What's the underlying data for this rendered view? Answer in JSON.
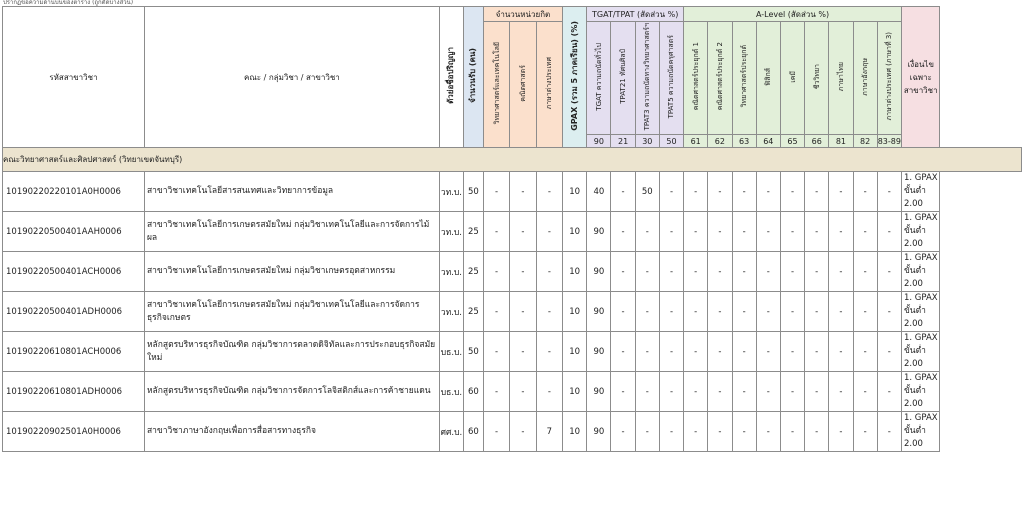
{
  "top_note": "ปรากฏข้อความด้านบนของตาราง (ถูกตัดบางส่วน)",
  "headers": {
    "code": "รหัสสาขาวิชา",
    "faculty": "คณะ / กลุ่มวิชา / สาขาวิชา",
    "degree": "ตัวย่อชื่อปริญญา",
    "seats": "จำนวนรับ (คน)",
    "unit_group": "จำนวนหน่วยกิต",
    "unit_cols": [
      "วิทยาศาสตร์และเทคโนโลยี",
      "คณิตศาสตร์",
      "ภาษาต่างประเทศ"
    ],
    "gpax": "GPAX (รวม 5 ภาคเรียน) (%)",
    "tgat_group": "TGAT/TPAT (สัดส่วน %)",
    "tgat_cols": [
      "TGAT ความถนัดทั่วไป",
      "TPAT21 ทัศนศิลป์",
      "TPAT3 ความถนัดทางวิทยาศาสตร์ฯ",
      "TPAT5 ความถนัดครุศาสตร์"
    ],
    "tgat_codes": [
      "90",
      "21",
      "30",
      "50"
    ],
    "alevel_group": "A-Level (สัดส่วน %)",
    "alevel_cols": [
      "คณิตศาสตร์ประยุกต์ 1",
      "คณิตศาสตร์ประยุกต์ 2",
      "วิทยาศาสตร์ประยุกต์",
      "ฟิสิกส์",
      "เคมี",
      "ชีววิทยา",
      "ภาษาไทย",
      "ภาษาอังกฤษ",
      "ภาษาต่างประเทศ (ภาษาที่ 3)"
    ],
    "alevel_codes": [
      "61",
      "62",
      "63",
      "64",
      "65",
      "66",
      "81",
      "82",
      "83-89"
    ],
    "note": "เงื่อนไขเฉพาะ สาขาวิชา"
  },
  "section_title": "คณะวิทยาศาสตร์และศิลปศาสตร์ (วิทยาเขตจันทบุรี)",
  "rows": [
    {
      "code": "10190220220101A0H0006",
      "name": "สาขาวิชาเทคโนโลยีสารสนเทศและวิทยาการข้อมูล",
      "degree": "วท.บ.",
      "seats": "50",
      "units": [
        "-",
        "-",
        "-"
      ],
      "gpax": "10",
      "tgat": [
        "40",
        "-",
        "50",
        "-"
      ],
      "alevel": [
        "-",
        "-",
        "-",
        "-",
        "-",
        "-",
        "-",
        "-",
        "-"
      ],
      "note": "1. GPAX ขั้นต่ำ 2.00"
    },
    {
      "code": "10190220500401AAH0006",
      "name": "สาขาวิชาเทคโนโลยีการเกษตรสมัยใหม่ กลุ่มวิชาเทคโนโลยีและการจัดการไม้ผล",
      "degree": "วท.บ.",
      "seats": "25",
      "units": [
        "-",
        "-",
        "-"
      ],
      "gpax": "10",
      "tgat": [
        "90",
        "-",
        "-",
        "-"
      ],
      "alevel": [
        "-",
        "-",
        "-",
        "-",
        "-",
        "-",
        "-",
        "-",
        "-"
      ],
      "note": "1. GPAX ขั้นต่ำ 2.00"
    },
    {
      "code": "10190220500401ACH0006",
      "name": "สาขาวิชาเทคโนโลยีการเกษตรสมัยใหม่ กลุ่มวิชาเกษตรอุตสาหกรรม",
      "degree": "วท.บ.",
      "seats": "25",
      "units": [
        "-",
        "-",
        "-"
      ],
      "gpax": "10",
      "tgat": [
        "90",
        "-",
        "-",
        "-"
      ],
      "alevel": [
        "-",
        "-",
        "-",
        "-",
        "-",
        "-",
        "-",
        "-",
        "-"
      ],
      "note": "1. GPAX ขั้นต่ำ 2.00"
    },
    {
      "code": "10190220500401ADH0006",
      "name": "สาขาวิชาเทคโนโลยีการเกษตรสมัยใหม่ กลุ่มวิชาเทคโนโลยีและการจัดการธุรกิจเกษตร",
      "degree": "วท.บ.",
      "seats": "25",
      "units": [
        "-",
        "-",
        "-"
      ],
      "gpax": "10",
      "tgat": [
        "90",
        "-",
        "-",
        "-"
      ],
      "alevel": [
        "-",
        "-",
        "-",
        "-",
        "-",
        "-",
        "-",
        "-",
        "-"
      ],
      "note": "1. GPAX ขั้นต่ำ 2.00"
    },
    {
      "code": "10190220610801ACH0006",
      "name": "หลักสูตรบริหารธุรกิจบัณฑิต กลุ่มวิชาการตลาดดิจิทัลและการประกอบธุรกิจสมัยใหม่",
      "degree": "บธ.บ.",
      "seats": "50",
      "units": [
        "-",
        "-",
        "-"
      ],
      "gpax": "10",
      "tgat": [
        "90",
        "-",
        "-",
        "-"
      ],
      "alevel": [
        "-",
        "-",
        "-",
        "-",
        "-",
        "-",
        "-",
        "-",
        "-"
      ],
      "note": "1. GPAX ขั้นต่ำ 2.00"
    },
    {
      "code": "10190220610801ADH0006",
      "name": "หลักสูตรบริหารธุรกิจบัณฑิต กลุ่มวิชาการจัดการโลจิสติกส์และการค้าชายแดน",
      "degree": "บธ.บ.",
      "seats": "60",
      "units": [
        "-",
        "-",
        "-"
      ],
      "gpax": "10",
      "tgat": [
        "90",
        "-",
        "-",
        "-"
      ],
      "alevel": [
        "-",
        "-",
        "-",
        "-",
        "-",
        "-",
        "-",
        "-",
        "-"
      ],
      "note": "1. GPAX ขั้นต่ำ 2.00"
    },
    {
      "code": "10190220902501A0H0006",
      "name": "สาขาวิชาภาษาอังกฤษเพื่อการสื่อสารทางธุรกิจ",
      "degree": "ศศ.บ.",
      "seats": "60",
      "units": [
        "-",
        "-",
        "7"
      ],
      "gpax": "10",
      "tgat": [
        "90",
        "-",
        "-",
        "-"
      ],
      "alevel": [
        "-",
        "-",
        "-",
        "-",
        "-",
        "-",
        "-",
        "-",
        "-"
      ],
      "note": "1. GPAX ขั้นต่ำ 2.00"
    }
  ]
}
